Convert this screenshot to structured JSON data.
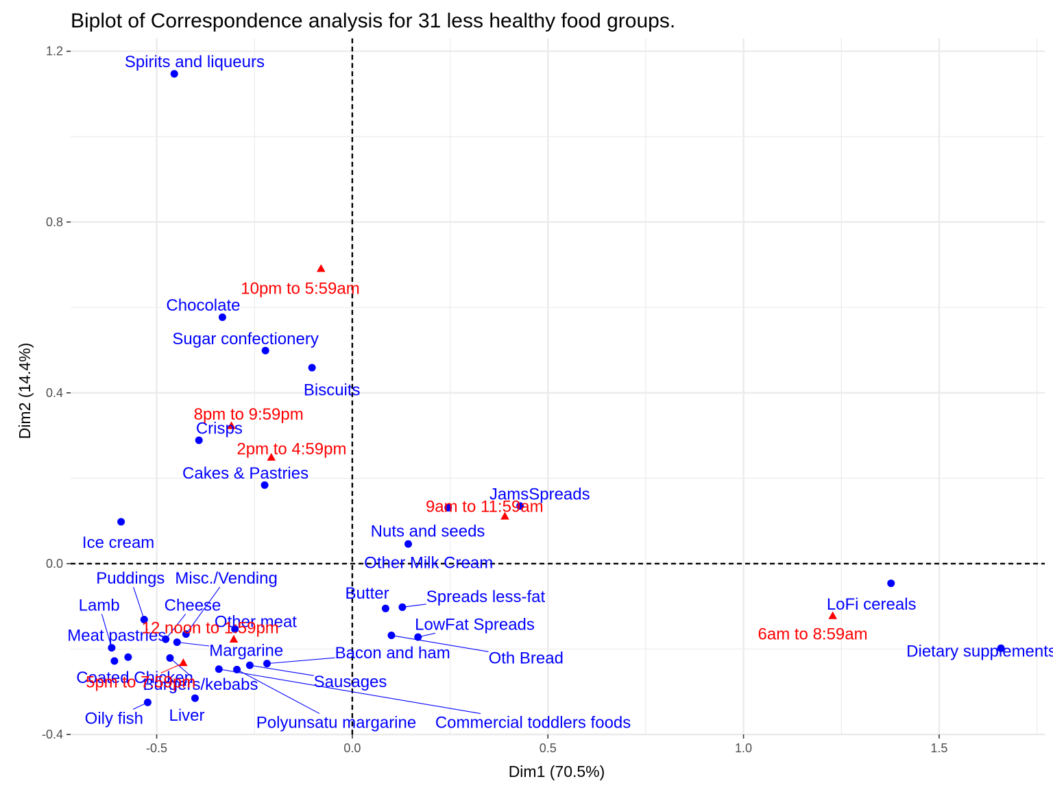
{
  "chart_data": {
    "type": "scatter",
    "title": "Biplot of Correspondence analysis for 31 less healthy food groups.",
    "xlabel": "Dim1 (70.5%)",
    "ylabel": "Dim2 (14.4%)",
    "xlim": [
      -0.72,
      1.77
    ],
    "ylim": [
      -0.4,
      1.23
    ],
    "x_ticks": [
      -0.5,
      0.0,
      0.5,
      1.0,
      1.5
    ],
    "x_tick_labels": [
      "-0.5",
      "0.0",
      "0.5",
      "1.0",
      "1.5"
    ],
    "y_ticks": [
      -0.4,
      0.0,
      0.4,
      0.8,
      1.2
    ],
    "y_tick_labels": [
      "-0.4",
      "0.0",
      "0.4",
      "0.8",
      "1.2"
    ],
    "grid": true,
    "reference_lines": {
      "x": 0,
      "y": 0,
      "style": "dashed"
    },
    "colors": {
      "rows": "#0000ff",
      "columns": "#ff0000",
      "grid": "#ebebeb",
      "reference": "#000000"
    },
    "series": [
      {
        "marker": "circle",
        "color": "#0000ff",
        "points": [
          {
            "label": "Spirits and liqueurs",
            "x": -0.455,
            "y": 1.147,
            "lx": -0.403,
            "ly": 1.175
          },
          {
            "label": "Chocolate",
            "x": -0.332,
            "y": 0.577,
            "lx": -0.381,
            "ly": 0.605
          },
          {
            "label": "Sugar confectionery",
            "x": -0.222,
            "y": 0.499,
            "lx": -0.273,
            "ly": 0.527
          },
          {
            "label": "Biscuits",
            "x": -0.103,
            "y": 0.459,
            "lx": -0.052,
            "ly": 0.407
          },
          {
            "label": "Crisps",
            "x": -0.392,
            "y": 0.289,
            "lx": -0.34,
            "ly": 0.317
          },
          {
            "label": "Cakes & Pastries",
            "x": -0.224,
            "y": 0.184,
            "lx": -0.273,
            "ly": 0.212
          },
          {
            "label": "Ice cream",
            "x": -0.591,
            "y": 0.098,
            "lx": -0.598,
            "ly": 0.05
          },
          {
            "label": "JamsSpreads",
            "x": 0.429,
            "y": 0.135,
            "lx": 0.479,
            "ly": 0.163
          },
          {
            "label": "Nuts and seeds",
            "x": 0.245,
            "y": 0.131,
            "lx": 0.193,
            "ly": 0.076
          },
          {
            "label": "Other Milk Cream",
            "x": 0.143,
            "y": 0.046,
            "lx": 0.195,
            "ly": 0.002
          },
          {
            "label": "LoFi cereals",
            "x": 1.377,
            "y": -0.046,
            "lx": 1.327,
            "ly": -0.095
          },
          {
            "label": "Dietary supplements",
            "x": 1.658,
            "y": -0.198,
            "lx": 1.608,
            "ly": -0.205
          },
          {
            "label": "Puddings",
            "x": -0.532,
            "y": -0.131,
            "lx": -0.567,
            "ly": -0.034
          },
          {
            "label": "Misc./Vending",
            "x": -0.425,
            "y": -0.165,
            "lx": -0.322,
            "ly": -0.034
          },
          {
            "label": "Lamb",
            "x": -0.615,
            "y": -0.197,
            "lx": -0.647,
            "ly": -0.097
          },
          {
            "label": "Cheese",
            "x": -0.477,
            "y": -0.177,
            "lx": -0.408,
            "ly": -0.097
          },
          {
            "label": "Meat pastries",
            "x": -0.573,
            "y": -0.219,
            "lx": -0.602,
            "ly": -0.168
          },
          {
            "label": "Other meat",
            "x": -0.3,
            "y": -0.153,
            "lx": -0.247,
            "ly": -0.136
          },
          {
            "label": "Margarine",
            "x": -0.448,
            "y": -0.184,
            "lx": -0.271,
            "ly": -0.203
          },
          {
            "label": "Coated Chicken",
            "x": -0.608,
            "y": -0.228,
            "lx": -0.556,
            "ly": -0.267
          },
          {
            "label": "Burgers/kebabs",
            "x": -0.466,
            "y": -0.221,
            "lx": -0.388,
            "ly": -0.283
          },
          {
            "label": "Oily fish",
            "x": -0.523,
            "y": -0.325,
            "lx": -0.609,
            "ly": -0.362
          },
          {
            "label": "Liver",
            "x": -0.402,
            "y": -0.315,
            "lx": -0.423,
            "ly": -0.355
          },
          {
            "label": "Polyunsatu margarine",
            "x": -0.295,
            "y": -0.248,
            "lx": -0.041,
            "ly": -0.372
          },
          {
            "label": "Butter",
            "x": 0.085,
            "y": -0.105,
            "lx": 0.038,
            "ly": -0.069
          },
          {
            "label": "Spreads less-fat",
            "x": 0.128,
            "y": -0.102,
            "lx": 0.341,
            "ly": -0.077
          },
          {
            "label": "LowFat Spreads",
            "x": 0.168,
            "y": -0.172,
            "lx": 0.313,
            "ly": -0.142
          },
          {
            "label": "Oth Bread",
            "x": 0.1,
            "y": -0.168,
            "lx": 0.444,
            "ly": -0.221
          },
          {
            "label": "Bacon and ham",
            "x": -0.218,
            "y": -0.234,
            "lx": 0.103,
            "ly": -0.209
          },
          {
            "label": "Sausages",
            "x": -0.262,
            "y": -0.238,
            "lx": -0.005,
            "ly": -0.276
          },
          {
            "label": "Commercial toddlers foods",
            "x": -0.341,
            "y": -0.247,
            "lx": 0.462,
            "ly": -0.372
          }
        ]
      },
      {
        "marker": "triangle",
        "color": "#ff0000",
        "points": [
          {
            "label": "10pm to 5:59am",
            "x": -0.08,
            "y": 0.69,
            "lx": -0.133,
            "ly": 0.645
          },
          {
            "label": "8pm to 9:59pm",
            "x": -0.309,
            "y": 0.322,
            "lx": -0.265,
            "ly": 0.35
          },
          {
            "label": "2pm to 4:59pm",
            "x": -0.207,
            "y": 0.248,
            "lx": -0.155,
            "ly": 0.269
          },
          {
            "label": "9am to 11:59am",
            "x": 0.39,
            "y": 0.11,
            "lx": 0.338,
            "ly": 0.134
          },
          {
            "label": "6am to 8:59am",
            "x": 1.228,
            "y": -0.123,
            "lx": 1.177,
            "ly": -0.165
          },
          {
            "label": "12 noon to 1:59pm",
            "x": -0.303,
            "y": -0.178,
            "lx": -0.363,
            "ly": -0.15
          },
          {
            "label": "5pm to 7:59pm",
            "x": -0.432,
            "y": -0.233,
            "lx": -0.541,
            "ly": -0.277
          }
        ]
      }
    ]
  }
}
